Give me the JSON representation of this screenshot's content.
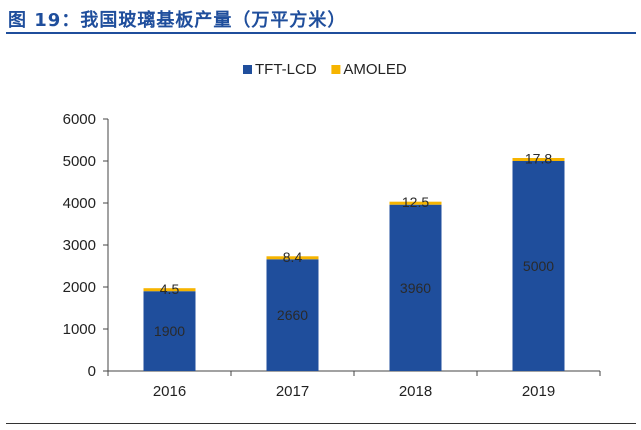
{
  "page_title": "图 19：我国玻璃基板产量（万平方米）",
  "chart_data": {
    "type": "bar",
    "stacked": true,
    "title": "图 19：我国玻璃基板产量（万平方米）",
    "categories": [
      "2016",
      "2017",
      "2018",
      "2019"
    ],
    "series": [
      {
        "name": "TFT-LCD",
        "color": "#1f4e9c",
        "values": [
          1900,
          2660,
          3960,
          5000
        ],
        "labels": [
          "1900",
          "2660",
          "3960",
          "5000"
        ]
      },
      {
        "name": "AMOLED",
        "color": "#f6b400",
        "values": [
          4.5,
          8.4,
          12.5,
          17.8
        ],
        "labels": [
          "4.5",
          "8.4",
          "12.5",
          "17.8"
        ]
      }
    ],
    "yticks": [
      "0",
      "1000",
      "2000",
      "3000",
      "4000",
      "5000",
      "6000"
    ],
    "ylim": [
      0,
      6000
    ],
    "xlabel": "",
    "ylabel": "",
    "legend_position": "top-center",
    "grid": false
  }
}
